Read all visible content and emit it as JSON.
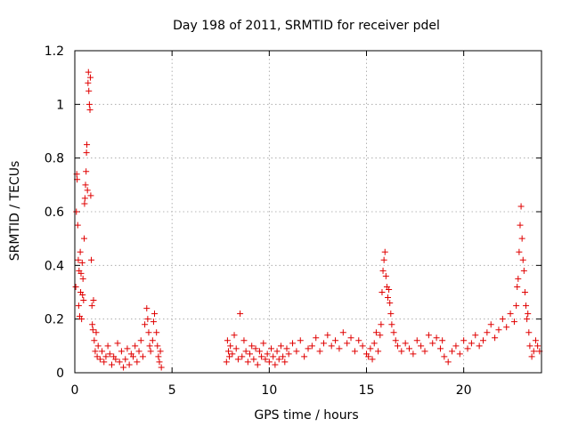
{
  "chart_data": {
    "type": "scatter",
    "title": "Day 198 of 2011, SRMTID for receiver pdel",
    "xlabel": "GPS time / hours",
    "ylabel": "SRMTID / TECUs",
    "xlim": [
      0,
      24
    ],
    "ylim": [
      0,
      1.2
    ],
    "xticks": [
      0,
      5,
      10,
      15,
      20
    ],
    "xtick_labels": [
      "0",
      "5",
      "10",
      "15",
      "20"
    ],
    "yticks": [
      0,
      0.2,
      0.4,
      0.6,
      0.8,
      1.0,
      1.2
    ],
    "ytick_labels": [
      "0",
      "0.2",
      "0.4",
      "0.6",
      "0.8",
      "1",
      "1.2"
    ],
    "grid": true,
    "marker": "+",
    "color": "#e00000",
    "series": [
      {
        "name": "SRMTID",
        "x": [
          0.05,
          0.08,
          0.1,
          0.12,
          0.15,
          0.18,
          0.2,
          0.22,
          0.25,
          0.28,
          0.3,
          0.32,
          0.35,
          0.38,
          0.4,
          0.42,
          0.45,
          0.48,
          0.5,
          0.52,
          0.55,
          0.58,
          0.6,
          0.62,
          0.65,
          0.68,
          0.7,
          0.72,
          0.75,
          0.78,
          0.8,
          0.82,
          0.85,
          0.88,
          0.9,
          0.93,
          0.96,
          1.0,
          1.05,
          1.1,
          1.15,
          1.2,
          1.3,
          1.4,
          1.5,
          1.6,
          1.7,
          1.8,
          1.9,
          2.0,
          2.1,
          2.2,
          2.3,
          2.4,
          2.5,
          2.6,
          2.7,
          2.8,
          2.9,
          3.0,
          3.1,
          3.2,
          3.3,
          3.4,
          3.5,
          3.6,
          3.7,
          3.75,
          3.8,
          3.85,
          3.9,
          4.0,
          4.05,
          4.1,
          4.2,
          4.25,
          4.3,
          4.35,
          4.4,
          4.45,
          7.8,
          7.85,
          7.9,
          7.95,
          8.0,
          8.1,
          8.2,
          8.3,
          8.4,
          8.5,
          8.6,
          8.7,
          8.8,
          8.9,
          9.0,
          9.1,
          9.2,
          9.3,
          9.4,
          9.5,
          9.6,
          9.7,
          9.8,
          9.9,
          10.0,
          10.1,
          10.2,
          10.3,
          10.4,
          10.5,
          10.6,
          10.7,
          10.8,
          10.9,
          11.0,
          11.2,
          11.4,
          11.6,
          11.8,
          12.0,
          12.2,
          12.4,
          12.6,
          12.8,
          13.0,
          13.2,
          13.4,
          13.6,
          13.8,
          14.0,
          14.2,
          14.4,
          14.6,
          14.8,
          15.0,
          15.1,
          15.2,
          15.3,
          15.4,
          15.5,
          15.6,
          15.7,
          15.75,
          15.8,
          15.85,
          15.9,
          15.95,
          16.0,
          16.05,
          16.1,
          16.15,
          16.2,
          16.25,
          16.3,
          16.4,
          16.5,
          16.6,
          16.8,
          17.0,
          17.2,
          17.4,
          17.6,
          17.8,
          18.0,
          18.2,
          18.4,
          18.6,
          18.8,
          18.9,
          19.0,
          19.2,
          19.4,
          19.6,
          19.8,
          20.0,
          20.2,
          20.4,
          20.6,
          20.8,
          21.0,
          21.2,
          21.4,
          21.6,
          21.8,
          22.0,
          22.2,
          22.4,
          22.6,
          22.7,
          22.75,
          22.8,
          22.85,
          22.9,
          22.95,
          23.0,
          23.05,
          23.1,
          23.15,
          23.2,
          23.25,
          23.3,
          23.35,
          23.4,
          23.5,
          23.6,
          23.7,
          23.8,
          23.9
        ],
        "y": [
          0.32,
          0.6,
          0.74,
          0.72,
          0.55,
          0.42,
          0.25,
          0.38,
          0.21,
          0.45,
          0.3,
          0.37,
          0.2,
          0.41,
          0.29,
          0.35,
          0.27,
          0.5,
          0.63,
          0.65,
          0.7,
          0.75,
          0.82,
          0.85,
          0.68,
          1.08,
          1.12,
          1.05,
          1.0,
          0.98,
          1.1,
          0.66,
          0.42,
          0.25,
          0.18,
          0.16,
          0.27,
          0.12,
          0.08,
          0.15,
          0.06,
          0.1,
          0.05,
          0.08,
          0.04,
          0.06,
          0.1,
          0.07,
          0.03,
          0.06,
          0.05,
          0.11,
          0.04,
          0.08,
          0.02,
          0.05,
          0.09,
          0.03,
          0.07,
          0.06,
          0.1,
          0.04,
          0.08,
          0.12,
          0.06,
          0.18,
          0.24,
          0.2,
          0.15,
          0.1,
          0.08,
          0.12,
          0.19,
          0.22,
          0.15,
          0.1,
          0.06,
          0.04,
          0.08,
          0.02,
          0.04,
          0.12,
          0.08,
          0.06,
          0.1,
          0.07,
          0.14,
          0.09,
          0.05,
          0.22,
          0.06,
          0.12,
          0.08,
          0.04,
          0.07,
          0.1,
          0.05,
          0.09,
          0.03,
          0.08,
          0.06,
          0.11,
          0.05,
          0.07,
          0.04,
          0.09,
          0.06,
          0.03,
          0.08,
          0.05,
          0.1,
          0.06,
          0.04,
          0.09,
          0.07,
          0.11,
          0.08,
          0.12,
          0.06,
          0.09,
          0.1,
          0.13,
          0.08,
          0.11,
          0.14,
          0.1,
          0.12,
          0.09,
          0.15,
          0.11,
          0.13,
          0.08,
          0.12,
          0.1,
          0.07,
          0.06,
          0.09,
          0.05,
          0.11,
          0.15,
          0.08,
          0.14,
          0.18,
          0.3,
          0.38,
          0.42,
          0.45,
          0.36,
          0.32,
          0.28,
          0.31,
          0.26,
          0.22,
          0.18,
          0.15,
          0.12,
          0.1,
          0.08,
          0.11,
          0.09,
          0.07,
          0.12,
          0.1,
          0.08,
          0.14,
          0.11,
          0.13,
          0.09,
          0.12,
          0.06,
          0.04,
          0.08,
          0.1,
          0.07,
          0.12,
          0.09,
          0.11,
          0.14,
          0.1,
          0.12,
          0.15,
          0.18,
          0.13,
          0.16,
          0.2,
          0.17,
          0.22,
          0.19,
          0.25,
          0.32,
          0.35,
          0.45,
          0.55,
          0.62,
          0.5,
          0.42,
          0.38,
          0.3,
          0.25,
          0.2,
          0.22,
          0.15,
          0.1,
          0.06,
          0.08,
          0.12,
          0.1,
          0.08
        ]
      }
    ]
  }
}
